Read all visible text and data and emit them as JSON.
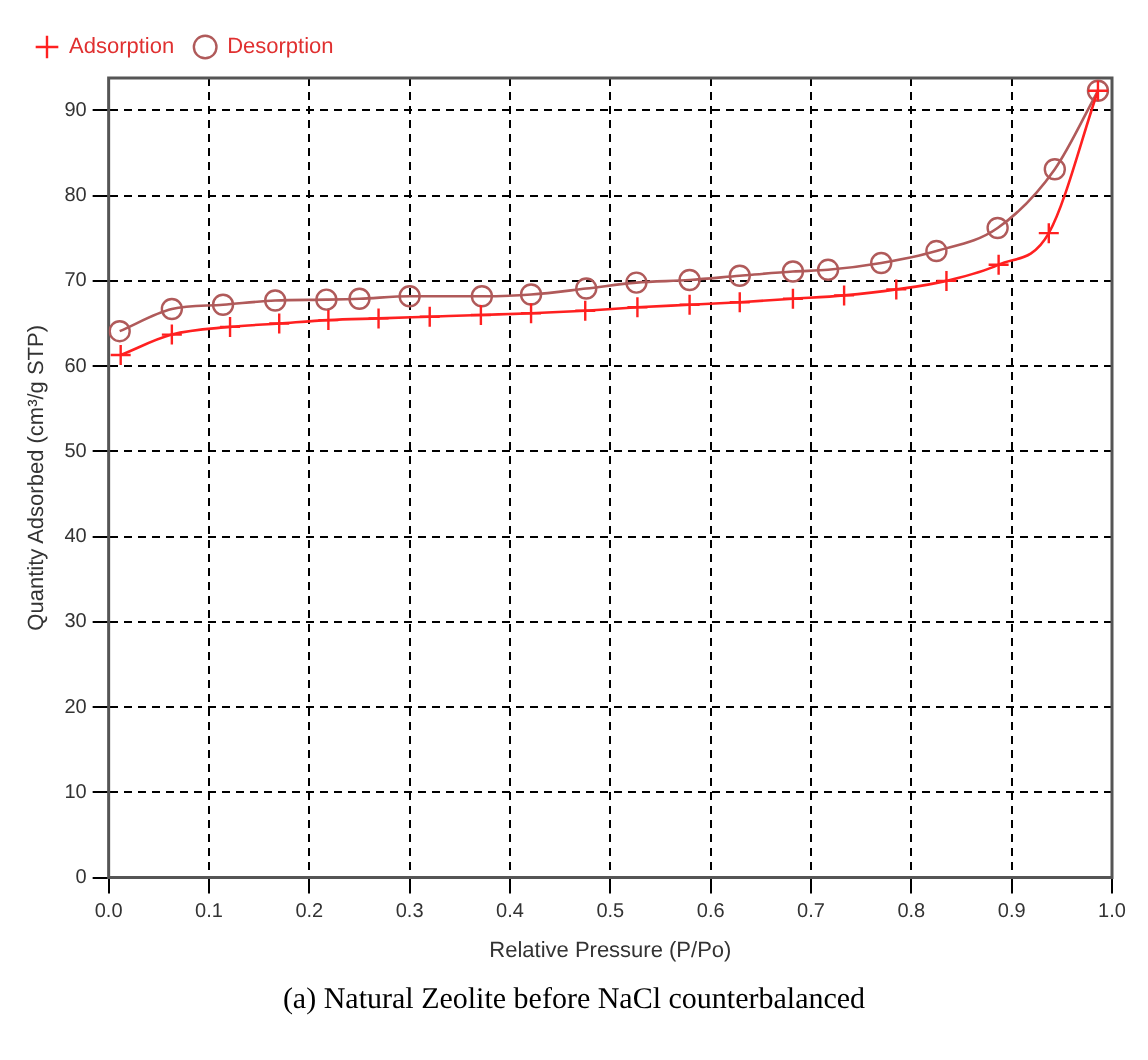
{
  "chart_data": {
    "type": "line",
    "xlabel": "Relative Pressure (P/Po)",
    "ylabel": "Quantity Adsorbed (cm³/g STP)",
    "xlim": [
      0,
      1
    ],
    "xticks": [
      {
        "value": 0,
        "label": "0.0"
      },
      0.1,
      0.2,
      0.3,
      0.4,
      0.5,
      0.6,
      0.7,
      0.8,
      0.9,
      {
        "value": 1,
        "label": "1.0"
      }
    ],
    "ylim": [
      0,
      93.8
    ],
    "yticks": [
      0,
      10,
      20,
      30,
      40,
      50,
      60,
      70,
      80,
      90
    ],
    "grid": true,
    "legend": "top left",
    "line_style": "solid",
    "series": [
      {
        "name": "Adsorption",
        "color": "#ff2020",
        "marker": "cross",
        "x": [
          0.012,
          0.063,
          0.121,
          0.17,
          0.219,
          0.269,
          0.32,
          0.371,
          0.421,
          0.475,
          0.527,
          0.579,
          0.629,
          0.682,
          0.733,
          0.785,
          0.835,
          0.887,
          0.937,
          0.986
        ],
        "values": [
          61.3,
          63.7,
          64.6,
          65.0,
          65.4,
          65.6,
          65.8,
          66.0,
          66.2,
          66.5,
          66.9,
          67.2,
          67.5,
          67.9,
          68.3,
          69.0,
          70.0,
          71.9,
          75.6,
          92.3
        ]
      },
      {
        "name": "Desorption",
        "color": "#b05a5a",
        "marker": "circle",
        "x": [
          0.011,
          0.063,
          0.114,
          0.166,
          0.217,
          0.25,
          0.3,
          0.372,
          0.421,
          0.476,
          0.526,
          0.579,
          0.629,
          0.682,
          0.717,
          0.77,
          0.825,
          0.886,
          0.943,
          0.986
        ],
        "values": [
          64.1,
          66.7,
          67.2,
          67.7,
          67.8,
          67.9,
          68.2,
          68.2,
          68.4,
          69.1,
          69.8,
          70.1,
          70.6,
          71.1,
          71.3,
          72.1,
          73.5,
          76.2,
          83.1,
          92.3
        ]
      }
    ],
    "annotations": [
      "(a) Natural Zeolite before NaCl counterbalanced"
    ]
  }
}
